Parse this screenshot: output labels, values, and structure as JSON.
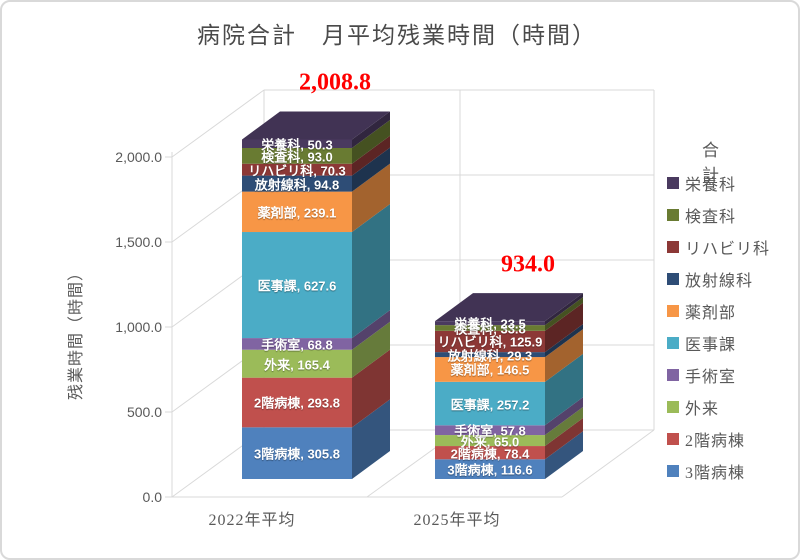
{
  "title": "病院合計　月平均残業時間（時間）",
  "y_axis": {
    "title": "残業時間（時間）",
    "ticks": [
      "2,000.0",
      "1,500.0",
      "1,000.0",
      "500.0",
      "0.0"
    ]
  },
  "legend": {
    "title": "合計"
  },
  "chart_data": {
    "type": "bar",
    "stacked": true,
    "style_3d": true,
    "title": "病院合計　月平均残業時間（時間）",
    "ylabel": "残業時間（時間）",
    "ylim": [
      0,
      2000
    ],
    "ytick_step": 500,
    "grid": true,
    "legend_position": "right",
    "categories": [
      "2022年平均",
      "2025年平均"
    ],
    "series": [
      {
        "name": "3階病棟",
        "color": "#4F81BD",
        "values": [
          305.8,
          116.6
        ]
      },
      {
        "name": "2階病棟",
        "color": "#C0504D",
        "values": [
          293.8,
          78.4
        ]
      },
      {
        "name": "外来",
        "color": "#9BBB59",
        "values": [
          165.4,
          65.0
        ]
      },
      {
        "name": "手術室",
        "color": "#8064A2",
        "values": [
          68.8,
          57.8
        ]
      },
      {
        "name": "医事課",
        "color": "#4BACC6",
        "values": [
          627.6,
          257.2
        ]
      },
      {
        "name": "薬剤部",
        "color": "#F79646",
        "values": [
          239.1,
          146.5
        ]
      },
      {
        "name": "放射線科",
        "color": "#2E4D76",
        "values": [
          94.8,
          29.3
        ]
      },
      {
        "name": "リハビリ科",
        "color": "#8C3836",
        "values": [
          70.3,
          125.9
        ]
      },
      {
        "name": "検査科",
        "color": "#697B32",
        "values": [
          93.0,
          33.8
        ]
      },
      {
        "name": "栄養科",
        "color": "#4A3A5F",
        "values": [
          50.3,
          23.5
        ]
      }
    ],
    "totals": [
      "2,008.8",
      "934.0"
    ],
    "total_color": "#FF0000"
  }
}
